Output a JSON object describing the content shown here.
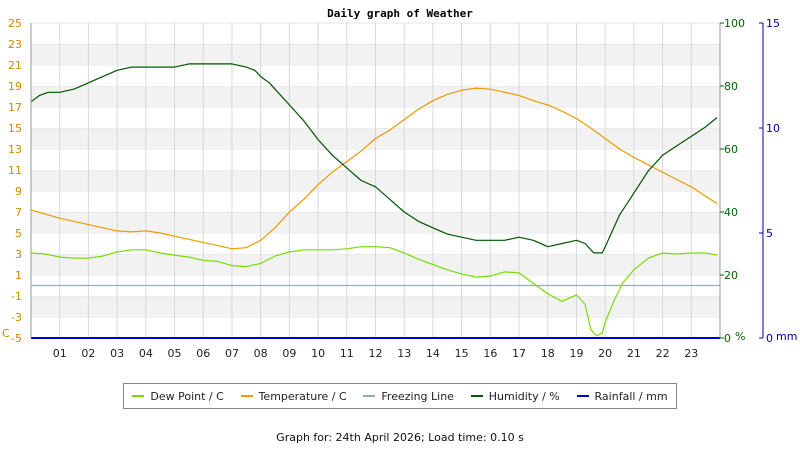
{
  "chart_data": {
    "type": "line",
    "title": "Daily graph of Weather",
    "x_ticks": [
      "01",
      "02",
      "03",
      "04",
      "05",
      "06",
      "07",
      "08",
      "09",
      "10",
      "11",
      "12",
      "13",
      "14",
      "15",
      "16",
      "17",
      "18",
      "19",
      "20",
      "21",
      "22",
      "23"
    ],
    "x_range": [
      0,
      24
    ],
    "left_axis": {
      "unit": "C",
      "ticks": [
        "25",
        "23",
        "21",
        "19",
        "17",
        "15",
        "13",
        "11",
        "9",
        "7",
        "5",
        "3",
        "1",
        "-1",
        "-3",
        "-5"
      ],
      "range": [
        -5,
        25
      ],
      "color": "#cc8800"
    },
    "right_axis_1": {
      "unit": "%",
      "ticks": [
        "100",
        "80",
        "60",
        "40",
        "20",
        "0"
      ],
      "range": [
        0,
        100
      ],
      "color": "#006600"
    },
    "right_axis_2": {
      "unit": "mm",
      "ticks": [
        "15",
        "10",
        "5",
        "0"
      ],
      "range": [
        0,
        15
      ],
      "color": "#000099"
    },
    "grid": true,
    "series": [
      {
        "name": "Dew Point / C",
        "color": "#77dd00",
        "axis": "left",
        "x": [
          0,
          0.5,
          1,
          1.5,
          2,
          2.5,
          3,
          3.5,
          4,
          4.5,
          5,
          5.5,
          6,
          6.5,
          7,
          7.5,
          8,
          8.5,
          9,
          9.5,
          10,
          10.5,
          11,
          11.5,
          12,
          12.5,
          13,
          13.5,
          14,
          14.5,
          15,
          15.5,
          16,
          16.5,
          17,
          17.5,
          18,
          18.5,
          19,
          19.3,
          19.5,
          19.7,
          19.9,
          20,
          20.3,
          20.6,
          21,
          21.5,
          22,
          22.5,
          23,
          23.5,
          23.9
        ],
        "values": [
          3.1,
          3.0,
          2.7,
          2.6,
          2.6,
          2.8,
          3.2,
          3.4,
          3.4,
          3.1,
          2.9,
          2.7,
          2.4,
          2.3,
          1.9,
          1.8,
          2.1,
          2.8,
          3.2,
          3.4,
          3.4,
          3.4,
          3.5,
          3.7,
          3.7,
          3.6,
          3.1,
          2.5,
          2.0,
          1.5,
          1.1,
          0.8,
          0.9,
          1.3,
          1.2,
          0.2,
          -0.8,
          -1.5,
          -0.9,
          -1.8,
          -4.2,
          -4.8,
          -4.5,
          -3.5,
          -1.5,
          0.2,
          1.5,
          2.6,
          3.1,
          3.0,
          3.1,
          3.1,
          2.9
        ]
      },
      {
        "name": "Temperature / C",
        "color": "#ee9900",
        "axis": "left",
        "x": [
          0,
          0.5,
          1,
          1.5,
          2,
          2.5,
          3,
          3.5,
          4,
          4.5,
          5,
          5.5,
          6,
          6.5,
          7,
          7.5,
          8,
          8.5,
          9,
          9.5,
          10,
          10.5,
          11,
          11.5,
          12,
          12.5,
          13,
          13.5,
          14,
          14.5,
          15,
          15.5,
          16,
          16.5,
          17,
          17.5,
          18,
          18.5,
          19,
          19.5,
          20,
          20.5,
          21,
          21.5,
          22,
          22.5,
          23,
          23.5,
          23.9
        ],
        "values": [
          7.2,
          6.8,
          6.4,
          6.1,
          5.8,
          5.5,
          5.2,
          5.1,
          5.2,
          5.0,
          4.7,
          4.4,
          4.1,
          3.8,
          3.5,
          3.6,
          4.3,
          5.5,
          7.0,
          8.2,
          9.6,
          10.8,
          11.8,
          12.8,
          14.0,
          14.8,
          15.8,
          16.8,
          17.6,
          18.2,
          18.6,
          18.8,
          18.7,
          18.4,
          18.1,
          17.6,
          17.2,
          16.6,
          15.9,
          15.0,
          14.0,
          13.0,
          12.2,
          11.5,
          10.8,
          10.1,
          9.4,
          8.5,
          7.8
        ]
      },
      {
        "name": "Freezing Line",
        "color": "#99aabb",
        "axis": "left",
        "x": [
          0,
          24
        ],
        "values": [
          0,
          0
        ]
      },
      {
        "name": "Humidity / %",
        "color": "#005500",
        "axis": "right_1",
        "x": [
          0,
          0.3,
          0.6,
          1,
          1.5,
          2,
          2.5,
          3,
          3.5,
          4,
          4.5,
          5,
          5.5,
          6,
          6.5,
          7,
          7.5,
          7.8,
          8,
          8.3,
          8.6,
          9,
          9.5,
          10,
          10.5,
          11,
          11.5,
          12,
          12.5,
          13,
          13.5,
          14,
          14.5,
          15,
          15.5,
          16,
          16.5,
          17,
          17.5,
          18,
          18.5,
          19,
          19.3,
          19.6,
          19.9,
          20,
          20.2,
          20.5,
          21,
          21.5,
          22,
          22.5,
          23,
          23.5,
          23.9
        ],
        "values": [
          75,
          77,
          78,
          78,
          79,
          81,
          83,
          85,
          86,
          86,
          86,
          86,
          87,
          87,
          87,
          87,
          86,
          85,
          83,
          81,
          78,
          74,
          69,
          63,
          58,
          54,
          50,
          48,
          44,
          40,
          37,
          35,
          33,
          32,
          31,
          31,
          31,
          32,
          31,
          29,
          30,
          31,
          30,
          27,
          27,
          29,
          33,
          39,
          46,
          53,
          58,
          61,
          64,
          67,
          70
        ]
      },
      {
        "name": "Rainfall / mm",
        "color": "#0000cc",
        "axis": "right_2",
        "x": [
          0,
          24
        ],
        "values": [
          0,
          0
        ]
      }
    ]
  },
  "footer": {
    "text": "Graph for: 24th April 2026; Load time: 0.10 s"
  }
}
